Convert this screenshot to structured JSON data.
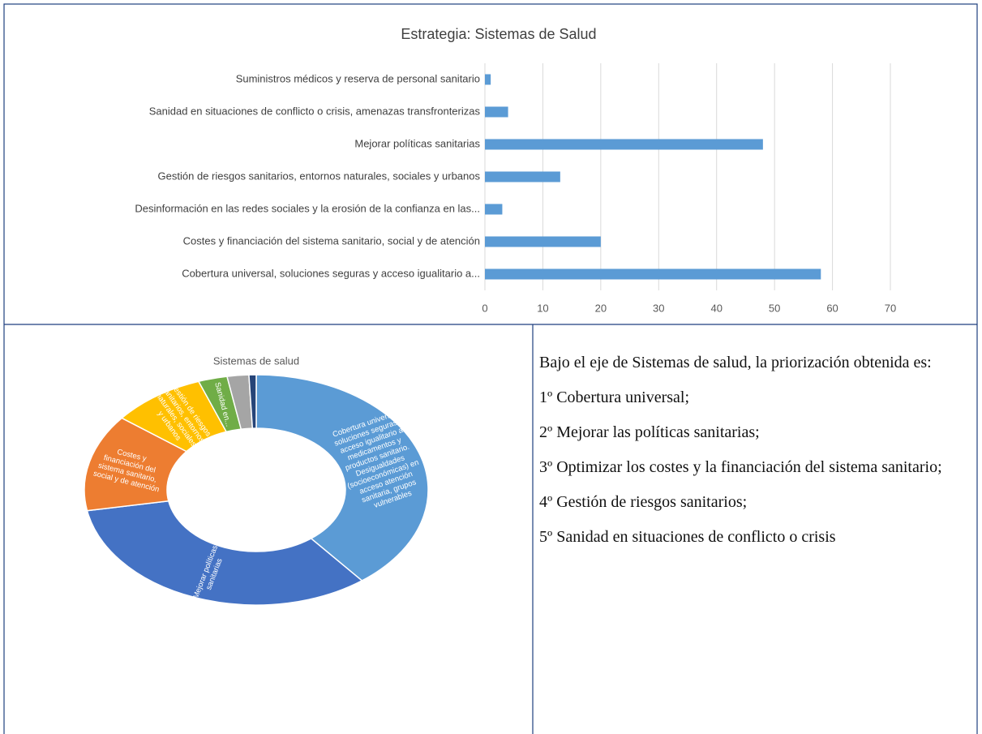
{
  "chart_data": [
    {
      "type": "bar",
      "orientation": "horizontal",
      "title": "Estrategia: Sistemas de Salud",
      "categories": [
        "Suministros médicos y reserva de personal sanitario",
        "Sanidad en situaciones de conflicto o crisis, amenazas transfronterizas",
        "Mejorar políticas sanitarias",
        "Gestión de riesgos sanitarios, entornos naturales, sociales y urbanos",
        "Desinformación en las redes sociales y la erosión de la confianza en las...",
        "Costes y financiación del sistema sanitario, social y de atención",
        "Cobertura universal, soluciones seguras y acceso igualitario a..."
      ],
      "values": [
        1,
        4,
        48,
        13,
        3,
        20,
        58
      ],
      "color": "#5b9bd5",
      "xlim": [
        0,
        70
      ],
      "xticks": [
        0,
        10,
        20,
        30,
        40,
        50,
        60,
        70
      ],
      "grid": true
    },
    {
      "type": "donut",
      "title": "Sistemas de salud",
      "categories": [
        "Cobertura universal, soluciones seguras y acceso igualitario a medicamentos y productos sanitario. Desigualdades (socioeconómicas) en acceso atención sanitaria, grupos vulnerables",
        "Mejorar políticas sanitarias",
        "Costes y financiación del sistema sanitario, social y de atención",
        "Gestión de riesgos sanitarios, entornos naturales, sociales y urbanos",
        "Sanidad en...",
        null,
        null
      ],
      "values": [
        58,
        48,
        20,
        13,
        4,
        3,
        1
      ],
      "colors": [
        "#5b9bd5",
        "#4472c4",
        "#ed7d31",
        "#ffc000",
        "#70ad47",
        "#a5a5a5",
        "#264478"
      ]
    }
  ],
  "text": {
    "intro": "Bajo el eje de Sistemas de salud, la priorización obtenida es:",
    "items": [
      "1º Cobertura universal;",
      "2º Mejorar las políticas sanitarias;",
      "3º Optimizar los costes y la financiación del sistema sanitario;",
      "4º Gestión de riesgos sanitarios;",
      "5º Sanidad en situaciones de conflicto o crisis"
    ]
  }
}
